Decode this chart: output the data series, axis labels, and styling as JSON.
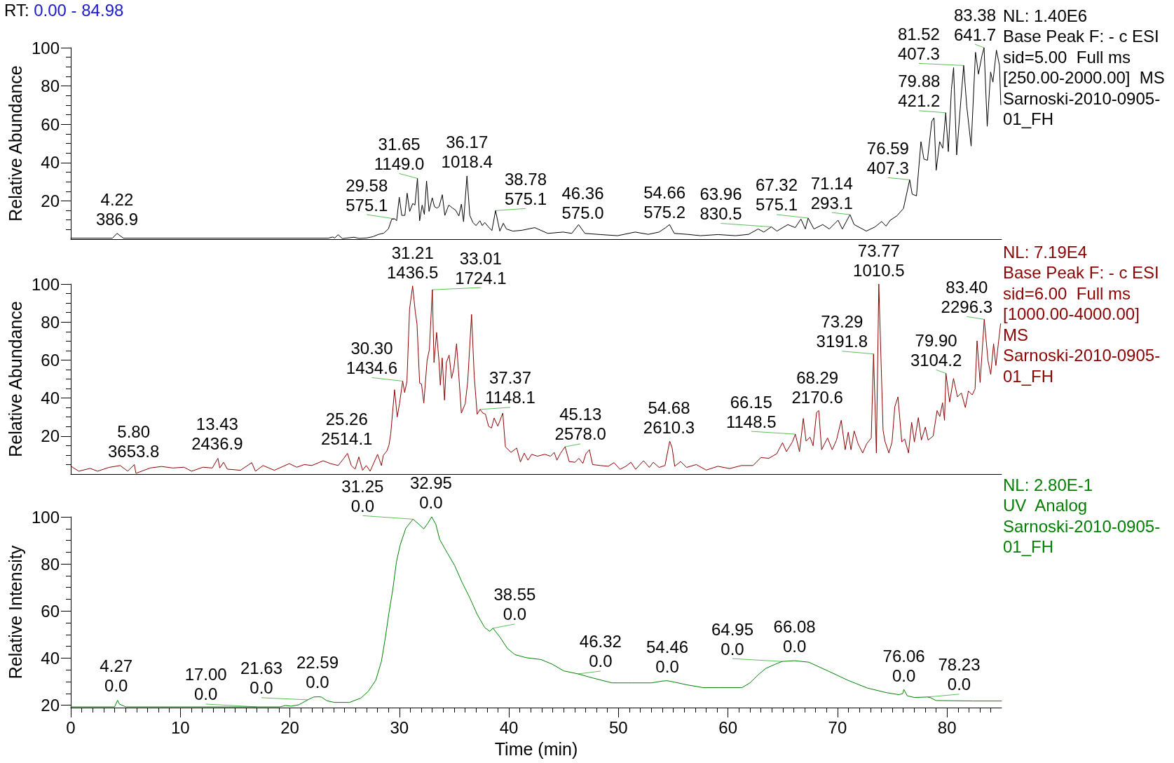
{
  "chart_data": [
    {
      "type": "line",
      "title": "RT: 0.00 - 84.98",
      "ylabel": "Relative Abundance",
      "color": "#000000",
      "x": [
        0,
        3.8,
        4.22,
        4.8,
        23.5,
        23.9,
        24.1,
        24.4,
        24.8,
        25.85,
        26.3,
        27,
        27.6,
        28.1,
        28.57,
        29,
        29.3,
        29.58,
        29.75,
        29.99,
        30.22,
        30.5,
        30.71,
        30.94,
        31.22,
        31.42,
        31.65,
        31.85,
        32.08,
        32.28,
        32.48,
        32.71,
        33,
        33.2,
        33.43,
        33.63,
        33.92,
        34.15,
        34.51,
        34.86,
        35.14,
        35.43,
        35.66,
        35.86,
        36.17,
        36.43,
        36.71,
        37,
        37.35,
        37.57,
        37.8,
        38.14,
        38.45,
        38.78,
        39.17,
        39.49,
        39.77,
        40.36,
        41.16,
        42.36,
        43.55,
        44.95,
        45.74,
        46.36,
        46.94,
        48.33,
        49.92,
        51.52,
        52.72,
        53.71,
        54.31,
        54.66,
        55.1,
        56.3,
        57.5,
        59.09,
        60.69,
        61.88,
        62.76,
        63.27,
        63.96,
        64.47,
        65.47,
        66.14,
        66.66,
        67.06,
        67.32,
        67.85,
        68.65,
        69.25,
        70.05,
        70.44,
        71.14,
        71.52,
        72.63,
        73.43,
        74.03,
        74.43,
        74.82,
        75.43,
        76.02,
        76.59,
        76.82,
        77.21,
        77.62,
        77.89,
        78.21,
        78.61,
        78.81,
        79.01,
        79.33,
        79.61,
        79.88,
        80.12,
        80.4,
        80.6,
        80.88,
        81.2,
        81.52,
        81.8,
        82.2,
        82.6,
        82.87,
        83.19,
        83.38,
        83.67,
        83.98,
        84.19,
        84.51,
        84.79,
        84.91
      ],
      "values": [
        0.5,
        0.5,
        3,
        0.5,
        0.5,
        1.1,
        0.6,
        2.3,
        0.3,
        1,
        0.4,
        0.6,
        1.3,
        2.5,
        3.1,
        5.4,
        10.4,
        10.6,
        9.6,
        21.9,
        12.4,
        12.4,
        24,
        14.5,
        18.6,
        17.8,
        31.7,
        9.6,
        17.8,
        12.9,
        30.4,
        14.5,
        21.6,
        17,
        16.2,
        17,
        23.2,
        12.4,
        17.8,
        16.2,
        15.1,
        12.1,
        18.3,
        9.1,
        33,
        12.4,
        8.7,
        7.1,
        9.6,
        7.1,
        8.7,
        6.3,
        4.5,
        14.9,
        4.2,
        8.3,
        5.3,
        4.2,
        4.6,
        6,
        3,
        3.7,
        3,
        7.6,
        3,
        2.4,
        1.8,
        3.7,
        2.5,
        3.7,
        6,
        7.6,
        3,
        2.5,
        1.8,
        2.4,
        1.8,
        2.5,
        5.3,
        3.7,
        6.4,
        4.2,
        7.6,
        6,
        10.5,
        5.3,
        11,
        5.3,
        7.6,
        5.3,
        9.9,
        5.3,
        12.8,
        7.6,
        4.2,
        6.4,
        9.2,
        6.8,
        9.9,
        12.2,
        16,
        31,
        23.5,
        22.6,
        50.9,
        41.8,
        41.2,
        61.6,
        63.4,
        36,
        50.9,
        47.5,
        66,
        45.7,
        78.2,
        89.6,
        44,
        68,
        90.7,
        69.4,
        48.6,
        97.6,
        86.2,
        95.9,
        100,
        58.9,
        87.3,
        82,
        98.7,
        90.7,
        70.2
      ],
      "xlim": [
        0,
        84.98
      ],
      "ylim": [
        0,
        100
      ],
      "yticks": [
        {
          "value": 5,
          "label": null
        },
        {
          "value": 10,
          "label": null
        },
        {
          "value": 15,
          "label": null
        },
        20,
        {
          "value": 25,
          "label": null
        },
        {
          "value": 30,
          "label": null
        },
        {
          "value": 35,
          "label": null
        },
        40,
        {
          "value": 45,
          "label": null
        },
        {
          "value": 50,
          "label": null
        },
        {
          "value": 55,
          "label": null
        },
        60,
        {
          "value": 65,
          "label": null
        },
        {
          "value": 70,
          "label": null
        },
        {
          "value": 75,
          "label": null
        },
        80,
        {
          "value": 85,
          "label": null
        },
        {
          "value": 90,
          "label": null
        },
        {
          "value": 95,
          "label": null
        },
        100
      ],
      "tick_labels": "y",
      "annotations": [
        "NL: 1.40E6",
        "Base Peak F: - c ESI",
        "sid=5.00  Full ms",
        "[250.00-2000.00]  MS",
        "Sarnoski-2010-0905-01_FH",
        {
          "text": "4.22\n386.9",
          "x": 4.22,
          "y": 3
        },
        {
          "text": "29.58\n575.1",
          "x": 29.58,
          "y": 10.6
        },
        {
          "text": "31.65\n1149.0",
          "x": 31.65,
          "y": 31.7
        },
        {
          "text": "36.17\n1018.4",
          "x": 36.17,
          "y": 33
        },
        {
          "text": "38.78\n575.1",
          "x": 38.78,
          "y": 14.9
        },
        {
          "text": "46.36\n575.0",
          "x": 46.36,
          "y": 7.6
        },
        {
          "text": "54.66\n575.2",
          "x": 54.66,
          "y": 7.6
        },
        {
          "text": "63.96\n830.5",
          "x": 63.96,
          "y": 6.4
        },
        {
          "text": "67.32\n575.1",
          "x": 67.32,
          "y": 11
        },
        {
          "text": "71.14\n293.1",
          "x": 71.14,
          "y": 12.8
        },
        {
          "text": "76.59\n407.3",
          "x": 76.59,
          "y": 31
        },
        {
          "text": "79.88\n421.2",
          "x": 79.88,
          "y": 66
        },
        {
          "text": "81.52\n407.3",
          "x": 81.52,
          "y": 90.7
        },
        {
          "text": "83.38\n641.7",
          "x": 83.38,
          "y": 100
        }
      ]
    },
    {
      "type": "line",
      "ylabel": "Relative Abundance",
      "color": "#8b0000",
      "x": [
        0,
        0.73,
        1.76,
        2.45,
        3.48,
        4.51,
        5.2,
        5.8,
        5.95,
        7.25,
        8.28,
        9.31,
        10.34,
        11.03,
        12.06,
        12.92,
        13.43,
        13.6,
        13.95,
        14.29,
        15.49,
        16.52,
        16.86,
        17.55,
        18.58,
        19.95,
        20.63,
        21.32,
        22.01,
        23.04,
        23.72,
        24.41,
        24.93,
        25.26,
        25.61,
        25.96,
        26.3,
        26.64,
        26.98,
        27.33,
        28.01,
        28.36,
        28.53,
        28.87,
        29.05,
        29.21,
        29.56,
        29.8,
        30.01,
        30.3,
        30.48,
        30.69,
        30.93,
        31.21,
        31.45,
        31.61,
        31.85,
        32.02,
        32.23,
        32.53,
        32.74,
        33.01,
        33.16,
        33.4,
        33.61,
        33.74,
        33.91,
        34.12,
        34.29,
        34.54,
        34.77,
        34.98,
        35.22,
        35.39,
        35.66,
        36.01,
        36.24,
        36.59,
        36.83,
        37.1,
        37.37,
        37.62,
        37.86,
        38.14,
        38.41,
        38.65,
        38.99,
        39.44,
        39.68,
        40.19,
        40.71,
        41.05,
        41.4,
        41.74,
        42.08,
        42.6,
        43.28,
        43.8,
        44.14,
        44.38,
        44.72,
        45.13,
        45.5,
        46.03,
        46.39,
        46.75,
        47.03,
        47.35,
        47.64,
        48.35,
        49.07,
        49.6,
        50.14,
        50.68,
        51.14,
        51.57,
        52.29,
        52.82,
        53.18,
        53.71,
        54.25,
        54.68,
        54.9,
        55.14,
        55.68,
        56.22,
        57.11,
        58.01,
        59.08,
        60.15,
        61.23,
        62.29,
        63.01,
        63.73,
        64.45,
        64.98,
        65.34,
        65.88,
        66.15,
        66.53,
        66.88,
        67.13,
        67.49,
        67.77,
        68.09,
        68.29,
        68.55,
        69.09,
        69.52,
        69.91,
        70.34,
        70.7,
        70.98,
        71.23,
        71.52,
        71.88,
        72.3,
        72.66,
        73.08,
        73.29,
        73.55,
        73.77,
        74.16,
        74.33,
        74.69,
        74.98,
        75.23,
        75.52,
        75.87,
        76.13,
        76.48,
        76.77,
        77.02,
        77.38,
        77.66,
        78.02,
        78.27,
        78.73,
        79.09,
        79.34,
        79.59,
        79.77,
        79.9,
        80.24,
        80.59,
        80.95,
        81.31,
        81.67,
        81.95,
        82.3,
        82.56,
        82.74,
        83.02,
        83.4,
        83.74,
        83.99,
        84.25,
        84.46,
        84.89
      ],
      "values": [
        4.2,
        1.5,
        3,
        1.5,
        3.5,
        4.5,
        1.5,
        5,
        0.4,
        3.2,
        4,
        3.2,
        3.6,
        1.5,
        3.6,
        3.2,
        8.3,
        3.2,
        6.2,
        2.6,
        2,
        6,
        1.5,
        4.5,
        2,
        5.5,
        3.6,
        5,
        4.5,
        7,
        5.5,
        4.5,
        8.3,
        10.9,
        4.5,
        2.6,
        9,
        2,
        4.5,
        1.5,
        10.4,
        4.5,
        9.8,
        12.3,
        15.3,
        21.2,
        44.4,
        30,
        37,
        48.9,
        42.9,
        48.8,
        86.8,
        99,
        85.4,
        78.9,
        47.8,
        47.4,
        37.4,
        59.7,
        65.6,
        97,
        58.7,
        74.5,
        59.7,
        46.8,
        61.1,
        38.9,
        58.7,
        62.6,
        50.4,
        55.8,
        68.6,
        54.8,
        32.1,
        37,
        48.8,
        84,
        51.8,
        31.5,
        34,
        32.1,
        31.5,
        25.2,
        24.2,
        29.5,
        25.2,
        32.1,
        14.3,
        11.4,
        13.7,
        6.4,
        11,
        7.3,
        10.4,
        9.4,
        10.4,
        9.4,
        11.4,
        7.3,
        11,
        14.4,
        6.6,
        6.2,
        8.3,
        5.6,
        10.7,
        12.8,
        5,
        4.5,
        4.1,
        6,
        2.5,
        4.1,
        6.2,
        2.5,
        7,
        3.5,
        6.2,
        3.5,
        4.5,
        17.3,
        13.8,
        4.1,
        6.6,
        3.5,
        5,
        2.1,
        4.1,
        2.9,
        4.5,
        4.5,
        8.7,
        8.3,
        10.7,
        16.5,
        11.8,
        16.9,
        21,
        11.8,
        29.3,
        17.3,
        19.4,
        14.9,
        32.4,
        33.4,
        12.8,
        19,
        12.8,
        17.9,
        28.3,
        12.8,
        22,
        12.8,
        22.7,
        15.9,
        11.1,
        15.9,
        19,
        63.2,
        11.1,
        100,
        23.1,
        17.3,
        11.1,
        16.9,
        35.4,
        40.6,
        16.9,
        18.5,
        11.1,
        27.2,
        16.9,
        29.7,
        17.9,
        24.7,
        17.9,
        20,
        33.4,
        30.3,
        37.5,
        28.3,
        53,
        37.9,
        50.3,
        40.6,
        42.7,
        35,
        43.7,
        41.7,
        44.8,
        70.1,
        48.2,
        81.4,
        59.7,
        52.4,
        68.5,
        57.1,
        79.1
      ],
      "xlim": [
        0,
        84.98
      ],
      "ylim": [
        0,
        100
      ],
      "yticks": [
        {
          "value": 5,
          "label": null
        },
        {
          "value": 10,
          "label": null
        },
        {
          "value": 15,
          "label": null
        },
        20,
        {
          "value": 25,
          "label": null
        },
        {
          "value": 30,
          "label": null
        },
        {
          "value": 35,
          "label": null
        },
        40,
        {
          "value": 45,
          "label": null
        },
        {
          "value": 50,
          "label": null
        },
        {
          "value": 55,
          "label": null
        },
        60,
        {
          "value": 65,
          "label": null
        },
        {
          "value": 70,
          "label": null
        },
        {
          "value": 75,
          "label": null
        },
        80,
        {
          "value": 85,
          "label": null
        },
        {
          "value": 90,
          "label": null
        },
        {
          "value": 95,
          "label": null
        },
        100
      ],
      "tick_labels": "y",
      "annotations": [
        "NL: 7.19E4",
        "Base Peak F: - c ESI",
        "sid=6.00  Full ms",
        "[1000.00-4000.00]  MS",
        "Sarnoski-2010-0905-01_FH",
        {
          "text": "5.80\n3653.8",
          "x": 5.8,
          "y": 5
        },
        {
          "text": "13.43\n2436.9",
          "x": 13.43,
          "y": 8.3
        },
        {
          "text": "25.26\n2514.1",
          "x": 25.26,
          "y": 10.9
        },
        {
          "text": "30.30\n1434.6",
          "x": 30.3,
          "y": 48.9
        },
        {
          "text": "31.21\n1436.5",
          "x": 31.21,
          "y": 99
        },
        {
          "text": "33.01\n1724.1",
          "x": 33.01,
          "y": 97
        },
        {
          "text": "37.37\n1148.1",
          "x": 37.37,
          "y": 34
        },
        {
          "text": "45.13\n2578.0",
          "x": 45.13,
          "y": 14.4
        },
        {
          "text": "54.68\n2610.3",
          "x": 54.68,
          "y": 17.3
        },
        {
          "text": "66.15\n1148.5",
          "x": 66.15,
          "y": 21
        },
        {
          "text": "68.29\n2170.6",
          "x": 68.29,
          "y": 33.4
        },
        {
          "text": "73.29\n3191.8",
          "x": 73.29,
          "y": 63.2
        },
        {
          "text": "73.77\n1010.5",
          "x": 73.77,
          "y": 100
        },
        {
          "text": "79.90\n3104.2",
          "x": 79.9,
          "y": 53
        },
        {
          "text": "83.40\n2296.3",
          "x": 83.4,
          "y": 81.4
        }
      ]
    },
    {
      "type": "line",
      "xlabel": "Time (min)",
      "ylabel": "Relative Intensity",
      "color": "#008000",
      "x": [
        0,
        4,
        4.27,
        4.44,
        5.02,
        17,
        19.09,
        19.6,
        20.12,
        20.81,
        21.5,
        21.63,
        22.18,
        22.59,
        22.87,
        23.38,
        24.07,
        25.44,
        26.47,
        27.16,
        27.84,
        28.36,
        28.7,
        29.05,
        29.39,
        29.73,
        30.07,
        30.59,
        31.25,
        31.79,
        32.23,
        32.64,
        32.95,
        33.33,
        33.68,
        34.36,
        35.05,
        35.73,
        36.42,
        37.1,
        37.79,
        38.24,
        38.55,
        39.17,
        39.85,
        40.54,
        41.57,
        42.94,
        43.97,
        45,
        46.32,
        47.64,
        49.42,
        51.21,
        53,
        54.07,
        54.46,
        55.14,
        56.22,
        57.71,
        59.14,
        61.29,
        62.01,
        62.73,
        63.44,
        64.51,
        64.95,
        66.08,
        67.37,
        69.16,
        70.95,
        72.73,
        74.52,
        75.59,
        75.95,
        76.06,
        76.37,
        77.02,
        78.23,
        78.45,
        78.99,
        82.38,
        84.98
      ],
      "values": [
        19.3,
        19.3,
        22.1,
        20.5,
        19.3,
        19.3,
        19.3,
        19.9,
        19.6,
        20.2,
        21.9,
        22.3,
        23.5,
        23.6,
        23.5,
        21.9,
        21.2,
        21.2,
        23,
        25.9,
        30.6,
        38.6,
        48.2,
        59.3,
        68.9,
        80.8,
        88,
        95.2,
        99,
        96.8,
        94.9,
        97.6,
        100,
        96.8,
        90.4,
        84.8,
        79.3,
        72.1,
        65.7,
        58.6,
        53,
        51.4,
        52.7,
        49,
        44.2,
        41.5,
        40.2,
        39.4,
        37.4,
        34.6,
        33.3,
        31.6,
        29.5,
        29.5,
        29.5,
        30.3,
        30.4,
        29.8,
        28.7,
        27.5,
        27.5,
        27.5,
        29.5,
        32.8,
        35.6,
        37.8,
        38.6,
        38.9,
        38.3,
        34.5,
        30.6,
        27.3,
        25.3,
        24.5,
        24.9,
        26.7,
        24,
        23.3,
        23.5,
        23.3,
        22,
        21.8,
        21.8
      ],
      "xlim": [
        0,
        84.98
      ],
      "ylim": [
        19,
        100
      ],
      "xticks": [
        0,
        {
          "value": 1,
          "label": null
        },
        {
          "value": 2,
          "label": null
        },
        {
          "value": 3,
          "label": null
        },
        {
          "value": 4,
          "label": null
        },
        {
          "value": 5,
          "label": null
        },
        {
          "value": 6,
          "label": null
        },
        {
          "value": 7,
          "label": null
        },
        {
          "value": 8,
          "label": null
        },
        {
          "value": 9,
          "label": null
        },
        10,
        {
          "value": 11,
          "label": null
        },
        {
          "value": 12,
          "label": null
        },
        {
          "value": 13,
          "label": null
        },
        {
          "value": 14,
          "label": null
        },
        {
          "value": 15,
          "label": null
        },
        {
          "value": 16,
          "label": null
        },
        {
          "value": 17,
          "label": null
        },
        {
          "value": 18,
          "label": null
        },
        {
          "value": 19,
          "label": null
        },
        20,
        {
          "value": 21,
          "label": null
        },
        {
          "value": 22,
          "label": null
        },
        {
          "value": 23,
          "label": null
        },
        {
          "value": 24,
          "label": null
        },
        {
          "value": 25,
          "label": null
        },
        {
          "value": 26,
          "label": null
        },
        {
          "value": 27,
          "label": null
        },
        {
          "value": 28,
          "label": null
        },
        {
          "value": 29,
          "label": null
        },
        30,
        {
          "value": 31,
          "label": null
        },
        {
          "value": 32,
          "label": null
        },
        {
          "value": 33,
          "label": null
        },
        {
          "value": 34,
          "label": null
        },
        {
          "value": 35,
          "label": null
        },
        {
          "value": 36,
          "label": null
        },
        {
          "value": 37,
          "label": null
        },
        {
          "value": 38,
          "label": null
        },
        {
          "value": 39,
          "label": null
        },
        40,
        {
          "value": 41,
          "label": null
        },
        {
          "value": 42,
          "label": null
        },
        {
          "value": 43,
          "label": null
        },
        {
          "value": 44,
          "label": null
        },
        {
          "value": 45,
          "label": null
        },
        {
          "value": 46,
          "label": null
        },
        {
          "value": 47,
          "label": null
        },
        {
          "value": 48,
          "label": null
        },
        {
          "value": 49,
          "label": null
        },
        50,
        {
          "value": 51,
          "label": null
        },
        {
          "value": 52,
          "label": null
        },
        {
          "value": 53,
          "label": null
        },
        {
          "value": 54,
          "label": null
        },
        {
          "value": 55,
          "label": null
        },
        {
          "value": 56,
          "label": null
        },
        {
          "value": 57,
          "label": null
        },
        {
          "value": 58,
          "label": null
        },
        {
          "value": 59,
          "label": null
        },
        60,
        {
          "value": 61,
          "label": null
        },
        {
          "value": 62,
          "label": null
        },
        {
          "value": 63,
          "label": null
        },
        {
          "value": 64,
          "label": null
        },
        {
          "value": 65,
          "label": null
        },
        {
          "value": 66,
          "label": null
        },
        {
          "value": 67,
          "label": null
        },
        {
          "value": 68,
          "label": null
        },
        {
          "value": 69,
          "label": null
        },
        70,
        {
          "value": 71,
          "label": null
        },
        {
          "value": 72,
          "label": null
        },
        {
          "value": 73,
          "label": null
        },
        {
          "value": 74,
          "label": null
        },
        {
          "value": 75,
          "label": null
        },
        {
          "value": 76,
          "label": null
        },
        {
          "value": 77,
          "label": null
        },
        {
          "value": 78,
          "label": null
        },
        {
          "value": 79,
          "label": null
        },
        80,
        {
          "value": 81,
          "label": null
        },
        {
          "value": 82,
          "label": null
        },
        {
          "value": 83,
          "label": null
        },
        {
          "value": 84,
          "label": null
        }
      ],
      "yticks": [
        20,
        {
          "value": 25,
          "label": null
        },
        {
          "value": 30,
          "label": null
        },
        {
          "value": 35,
          "label": null
        },
        40,
        {
          "value": 45,
          "label": null
        },
        {
          "value": 50,
          "label": null
        },
        {
          "value": 55,
          "label": null
        },
        60,
        {
          "value": 65,
          "label": null
        },
        {
          "value": 70,
          "label": null
        },
        {
          "value": 75,
          "label": null
        },
        80,
        {
          "value": 85,
          "label": null
        },
        {
          "value": 90,
          "label": null
        },
        {
          "value": 95,
          "label": null
        },
        100
      ],
      "annotations": [
        "NL: 2.80E-1",
        "UV  Analog",
        "Sarnoski-2010-0905-01_FH",
        {
          "text": "4.27\n0.0",
          "x": 4.27,
          "y": 22.1
        },
        {
          "text": "17.00\n0.0",
          "x": 17,
          "y": 19.3
        },
        {
          "text": "21.63\n0.0",
          "x": 21.63,
          "y": 22.3
        },
        {
          "text": "22.59\n0.0",
          "x": 22.59,
          "y": 23.6
        },
        {
          "text": "31.25\n0.0",
          "x": 31.25,
          "y": 99
        },
        {
          "text": "32.95\n0.0",
          "x": 32.95,
          "y": 100
        },
        {
          "text": "38.55\n0.0",
          "x": 38.55,
          "y": 52.7
        },
        {
          "text": "46.32\n0.0",
          "x": 46.32,
          "y": 33.3
        },
        {
          "text": "54.46\n0.0",
          "x": 54.46,
          "y": 30.4
        },
        {
          "text": "64.95\n0.0",
          "x": 64.95,
          "y": 38.6
        },
        {
          "text": "66.08\n0.0",
          "x": 66.08,
          "y": 38.9
        },
        {
          "text": "76.06\n0.0",
          "x": 76.06,
          "y": 26.7
        },
        {
          "text": "78.23\n0.0",
          "x": 78.23,
          "y": 23.5
        }
      ]
    }
  ]
}
